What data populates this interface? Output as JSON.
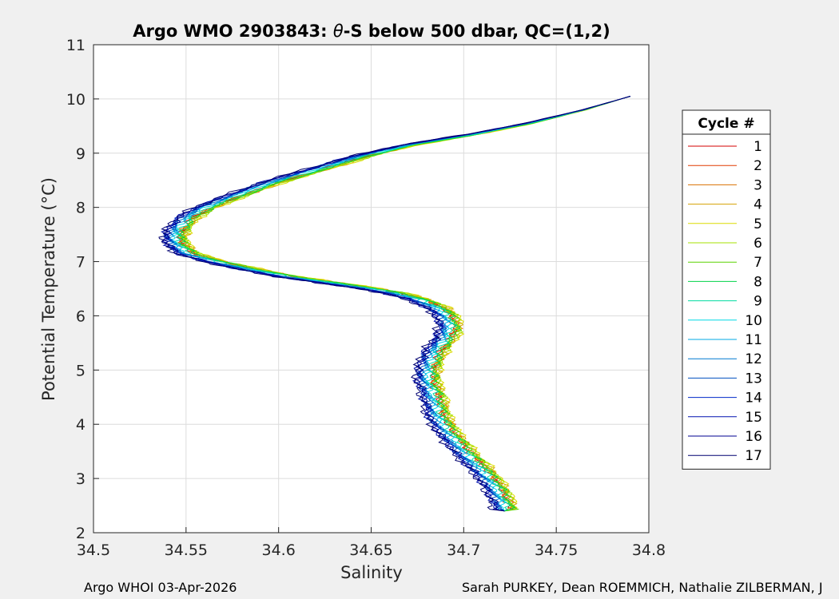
{
  "title": {
    "prefix": "Argo WMO 2903843: ",
    "theta": "θ",
    "suffix": "-S below 500 dbar,  QC=(1,2)"
  },
  "footer": {
    "left": "Argo WHOI 03-Apr-2026",
    "right": "Sarah PURKEY, Dean ROEMMICH, Nathalie ZILBERMAN, J"
  },
  "colors": {
    "background": "#f0f0f0",
    "axes_background": "#ffffff",
    "grid": "#dcdcdc",
    "axis": "#262626"
  },
  "chart_data": {
    "type": "line",
    "xlabel": "Salinity",
    "ylabel": "Potential Temperature (°C)",
    "xlim": [
      34.5,
      34.8
    ],
    "ylim": [
      2,
      11
    ],
    "xticks": [
      "34.5",
      "34.55",
      "34.6",
      "34.65",
      "34.7",
      "34.75",
      "34.8"
    ],
    "yticks": [
      "2",
      "3",
      "4",
      "5",
      "6",
      "7",
      "8",
      "9",
      "10",
      "11"
    ],
    "grid": true,
    "legend": {
      "title": "Cycle #",
      "placement": "right-outside"
    },
    "base_profile": [
      [
        34.79,
        10.05
      ],
      [
        34.765,
        9.8
      ],
      [
        34.735,
        9.55
      ],
      [
        34.705,
        9.35
      ],
      [
        34.67,
        9.15
      ],
      [
        34.645,
        8.95
      ],
      [
        34.62,
        8.7
      ],
      [
        34.595,
        8.45
      ],
      [
        34.575,
        8.2
      ],
      [
        34.56,
        8.0
      ],
      [
        34.55,
        7.8
      ],
      [
        34.545,
        7.6
      ],
      [
        34.543,
        7.45
      ],
      [
        34.545,
        7.3
      ],
      [
        34.55,
        7.15
      ],
      [
        34.565,
        7.0
      ],
      [
        34.585,
        6.85
      ],
      [
        34.605,
        6.72
      ],
      [
        34.625,
        6.62
      ],
      [
        34.645,
        6.52
      ],
      [
        34.662,
        6.42
      ],
      [
        34.675,
        6.3
      ],
      [
        34.685,
        6.15
      ],
      [
        34.69,
        6.0
      ],
      [
        34.692,
        5.8
      ],
      [
        34.69,
        5.6
      ],
      [
        34.685,
        5.4
      ],
      [
        34.682,
        5.2
      ],
      [
        34.68,
        5.0
      ],
      [
        34.68,
        4.8
      ],
      [
        34.682,
        4.6
      ],
      [
        34.684,
        4.4
      ],
      [
        34.685,
        4.2
      ],
      [
        34.688,
        4.0
      ],
      [
        34.692,
        3.8
      ],
      [
        34.697,
        3.6
      ],
      [
        34.702,
        3.4
      ],
      [
        34.708,
        3.2
      ],
      [
        34.713,
        3.0
      ],
      [
        34.717,
        2.8
      ],
      [
        34.72,
        2.6
      ],
      [
        34.722,
        2.4
      ]
    ],
    "series": [
      {
        "name": "1",
        "color": "#d40000",
        "s_offset": 0.003
      },
      {
        "name": "2",
        "color": "#e03c00",
        "s_offset": 0.005
      },
      {
        "name": "3",
        "color": "#d97000",
        "s_offset": 0.004
      },
      {
        "name": "4",
        "color": "#d5a000",
        "s_offset": 0.006
      },
      {
        "name": "5",
        "color": "#dcdc00",
        "s_offset": 0.007
      },
      {
        "name": "6",
        "color": "#a6e000",
        "s_offset": 0.006
      },
      {
        "name": "7",
        "color": "#5ad200",
        "s_offset": 0.005
      },
      {
        "name": "8",
        "color": "#00d24a",
        "s_offset": 0.004
      },
      {
        "name": "9",
        "color": "#00dca0",
        "s_offset": 0.002
      },
      {
        "name": "10",
        "color": "#00d8e6",
        "s_offset": 0.0
      },
      {
        "name": "11",
        "color": "#00a8e6",
        "s_offset": -0.001
      },
      {
        "name": "12",
        "color": "#0078d0",
        "s_offset": -0.002
      },
      {
        "name": "13",
        "color": "#0050c0",
        "s_offset": -0.003
      },
      {
        "name": "14",
        "color": "#0028c8",
        "s_offset": -0.004
      },
      {
        "name": "15",
        "color": "#0010b0",
        "s_offset": -0.005
      },
      {
        "name": "16",
        "color": "#000090",
        "s_offset": -0.004
      },
      {
        "name": "17",
        "color": "#000070",
        "s_offset": -0.006
      }
    ]
  }
}
